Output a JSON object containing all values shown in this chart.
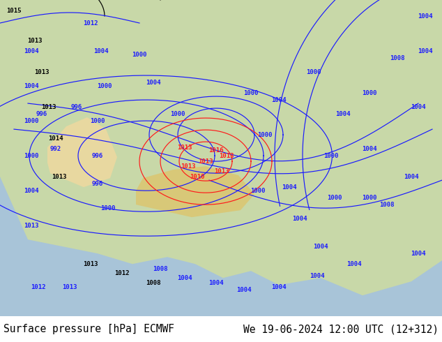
{
  "title_left": "Surface pressure [hPa] ECMWF",
  "title_right": "We 19-06-2024 12:00 UTC (12+312)",
  "footer_fontsize": 10.5,
  "ocean_color": "#a8c4d8",
  "land_color": "#c8d8a8",
  "tibet_color": "#d8c878",
  "desert_color": "#e8d8a0",
  "blue_line": "#1a1aff",
  "red_line": "#ff1a1a",
  "black_line": "#000000",
  "contour_lw": 0.85
}
